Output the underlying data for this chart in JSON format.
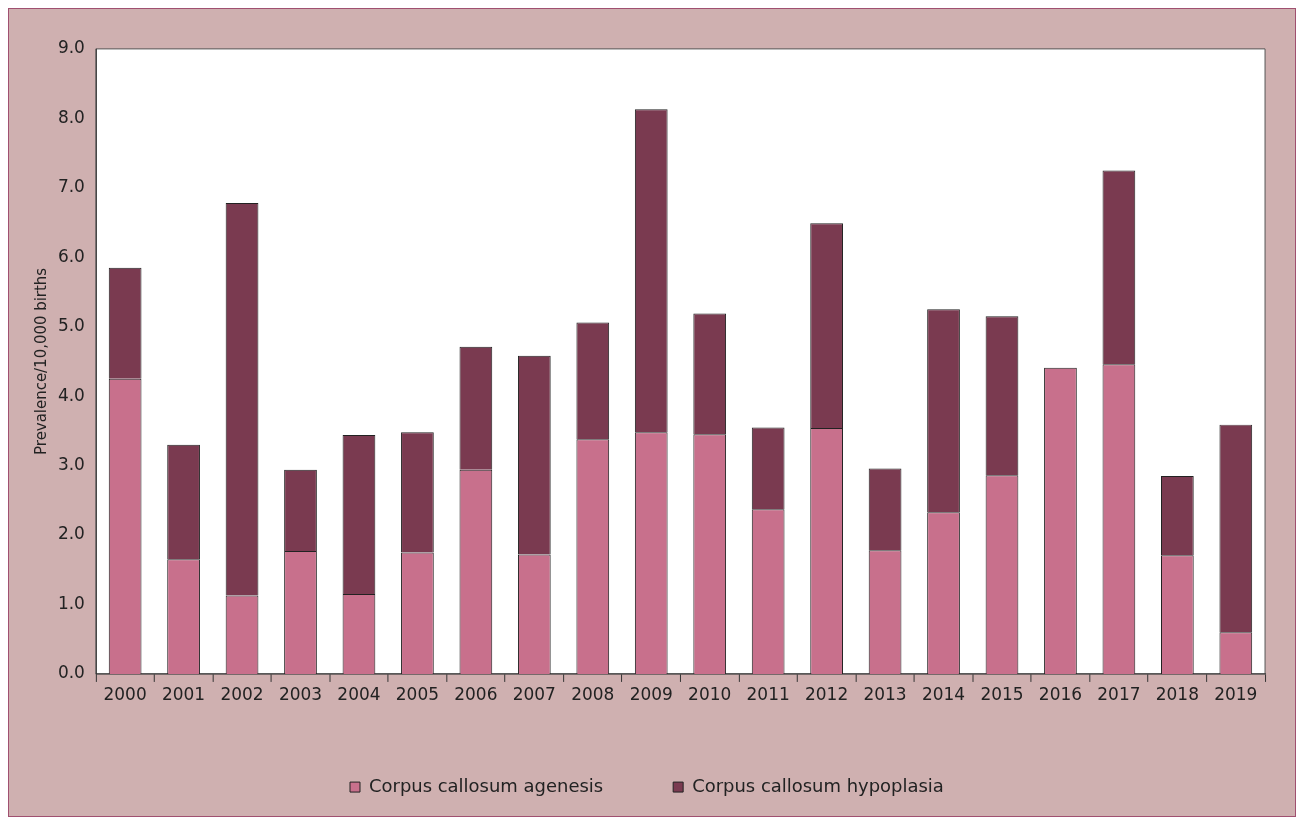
{
  "chart_data": {
    "type": "bar",
    "ylabel": "Prevalence/10,000 births",
    "categories": [
      "2000",
      "2001",
      "2002",
      "2003",
      "2004",
      "2005",
      "2006",
      "2007",
      "2008",
      "2009",
      "2010",
      "2011",
      "2012",
      "2013",
      "2014",
      "2015",
      "2016",
      "2017",
      "2018",
      "2019"
    ],
    "series": [
      {
        "name": "Corpus callosum agenesis",
        "color": "#c8708c",
        "values": [
          4.25,
          1.65,
          1.13,
          1.77,
          1.15,
          1.75,
          2.94,
          1.72,
          3.38,
          3.48,
          3.45,
          2.37,
          3.54,
          1.78,
          2.33,
          2.86,
          4.41,
          4.46,
          1.71,
          0.6
        ]
      },
      {
        "name": "Corpus callosum hypoplasia",
        "color": "#7a3a50",
        "values": [
          1.6,
          1.65,
          5.65,
          1.17,
          2.29,
          1.73,
          1.77,
          2.86,
          1.68,
          4.65,
          1.74,
          1.18,
          2.95,
          1.18,
          2.92,
          2.29,
          0,
          2.79,
          1.14,
          2.99
        ]
      }
    ],
    "stacked": true,
    "ylim": [
      0,
      9
    ],
    "yticks": [
      {
        "value": 0,
        "label": "0.0"
      },
      {
        "value": 1,
        "label": "1.0"
      },
      {
        "value": 2,
        "label": "2.0"
      },
      {
        "value": 3,
        "label": "3.0"
      },
      {
        "value": 4,
        "label": "4.0"
      },
      {
        "value": 5,
        "label": "5.0"
      },
      {
        "value": 6,
        "label": "6.0"
      },
      {
        "value": 7,
        "label": "7.0"
      },
      {
        "value": 8,
        "label": "8.0"
      },
      {
        "value": 9,
        "label": "9.0"
      }
    ],
    "grid": false,
    "legend": "bottom"
  }
}
